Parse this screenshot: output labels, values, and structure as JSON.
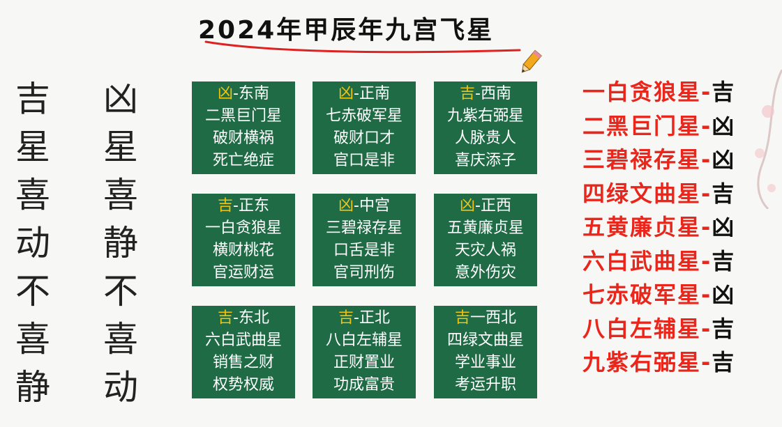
{
  "title": "2024年甲辰年九宫飞星",
  "colors": {
    "cell_bg": "#1f6b45",
    "tag": "#f1c40f",
    "star_name": "#e8261c"
  },
  "left_columns": {
    "ji": [
      "吉",
      "星",
      "喜",
      "动",
      "不",
      "喜",
      "静"
    ],
    "xiong": [
      "凶",
      "星",
      "喜",
      "静",
      "不",
      "喜",
      "动"
    ]
  },
  "grid": [
    {
      "tag": "凶",
      "sep": "-",
      "dir": "东南",
      "star": "二黑巨门星",
      "l1": "破财横祸",
      "l2": "死亡绝症"
    },
    {
      "tag": "凶",
      "sep": "-",
      "dir": "正南",
      "star": "七赤破军星",
      "l1": "破财口才",
      "l2": "官口是非"
    },
    {
      "tag": "吉",
      "sep": "-",
      "dir": "西南",
      "star": "九紫右弼星",
      "l1": "人脉贵人",
      "l2": "喜庆添子"
    },
    {
      "tag": "吉",
      "sep": "-",
      "dir": "正东",
      "star": "一白贪狼星",
      "l1": "横财桃花",
      "l2": "官运财运"
    },
    {
      "tag": "凶",
      "sep": "-",
      "dir": "中宫",
      "star": "三碧禄存星",
      "l1": "口舌是非",
      "l2": "官司刑伤"
    },
    {
      "tag": "凶",
      "sep": "-",
      "dir": "正西",
      "star": "五黄廉贞星",
      "l1": "天灾人祸",
      "l2": "意外伤灾"
    },
    {
      "tag": "吉",
      "sep": "-",
      "dir": "东北",
      "star": "六白武曲星",
      "l1": "销售之财",
      "l2": "权势权威"
    },
    {
      "tag": "吉",
      "sep": "-",
      "dir": "正北",
      "star": "八白左辅星",
      "l1": "正财置业",
      "l2": "功成富贵"
    },
    {
      "tag": "吉",
      "sep": "一",
      "dir": "西北",
      "star": "四绿文曲星",
      "l1": "学业事业",
      "l2": "考运升职"
    }
  ],
  "star_list": [
    {
      "name": "一白贪狼星",
      "sep": "-",
      "verdict": "吉"
    },
    {
      "name": "二黑巨门星",
      "sep": "-",
      "verdict": "凶"
    },
    {
      "name": "三碧禄存星",
      "sep": "-",
      "verdict": "凶"
    },
    {
      "name": "四绿文曲星",
      "sep": "-",
      "verdict": "吉"
    },
    {
      "name": "五黄廉贞星",
      "sep": "-",
      "verdict": "凶"
    },
    {
      "name": "六白武曲星",
      "sep": "-",
      "verdict": "吉"
    },
    {
      "name": "七赤破军星",
      "sep": "-",
      "verdict": "凶"
    },
    {
      "name": "八白左辅星",
      "sep": "-",
      "verdict": "吉"
    },
    {
      "name": "九紫右弼星",
      "sep": "-",
      "verdict": "吉"
    }
  ]
}
